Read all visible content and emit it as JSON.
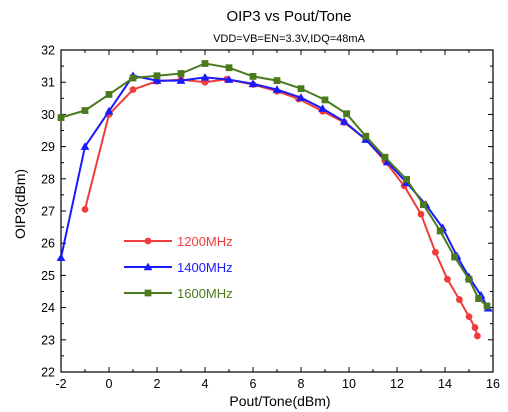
{
  "chart_data": {
    "type": "line",
    "title": "OIP3 vs Pout/Tone",
    "subtitle": "VDD=VB=EN=3.3V,IDQ=48mA",
    "xlabel": "Pout/Tone(dBm)",
    "ylabel": "OIP3(dBm)",
    "xlim": [
      -2,
      16
    ],
    "ylim": [
      22,
      32
    ],
    "xticks": [
      -2,
      0,
      2,
      4,
      6,
      8,
      10,
      12,
      14,
      16
    ],
    "yticks": [
      22,
      23,
      24,
      25,
      26,
      27,
      28,
      29,
      30,
      31,
      32
    ],
    "grid": false,
    "legend_position": "center-left",
    "series": [
      {
        "name": "1200MHz",
        "color": "#f03c3c",
        "marker": "circle",
        "x": [
          -1.0,
          0.0,
          1.0,
          2.0,
          3.0,
          4.0,
          4.9,
          6.0,
          7.0,
          7.9,
          8.9,
          9.8,
          10.7,
          11.5,
          12.3,
          13.0,
          13.6,
          14.1,
          14.6,
          15.0,
          15.25,
          15.35
        ],
        "y": [
          27.05,
          30.0,
          30.77,
          31.03,
          31.08,
          31.0,
          31.09,
          30.93,
          30.72,
          30.48,
          30.1,
          29.75,
          29.22,
          28.55,
          27.78,
          26.9,
          25.72,
          24.88,
          24.25,
          23.72,
          23.38,
          23.12
        ]
      },
      {
        "name": "1400MHz",
        "color": "#1a1aff",
        "marker": "triangle",
        "x": [
          -2.0,
          -1.0,
          0.0,
          1.0,
          2.0,
          3.0,
          4.0,
          5.0,
          6.0,
          7.0,
          8.0,
          8.9,
          9.8,
          10.7,
          11.6,
          12.4,
          13.2,
          13.9,
          14.5,
          15.0,
          15.5,
          15.8
        ],
        "y": [
          25.55,
          29.0,
          30.1,
          31.2,
          31.05,
          31.05,
          31.15,
          31.08,
          30.95,
          30.77,
          30.52,
          30.18,
          29.78,
          29.22,
          28.52,
          27.88,
          27.2,
          26.48,
          25.6,
          24.95,
          24.38,
          23.98
        ]
      },
      {
        "name": "1600MHz",
        "color": "#4a7a1c",
        "marker": "square",
        "x": [
          -2.0,
          -1.0,
          0.0,
          1.0,
          2.0,
          3.0,
          4.0,
          5.0,
          6.0,
          7.0,
          8.0,
          9.0,
          9.9,
          10.7,
          11.5,
          12.4,
          13.1,
          13.8,
          14.4,
          15.0,
          15.4,
          15.75
        ],
        "y": [
          29.9,
          30.12,
          30.62,
          31.13,
          31.2,
          31.27,
          31.58,
          31.45,
          31.18,
          31.05,
          30.8,
          30.45,
          30.02,
          29.32,
          28.67,
          27.98,
          27.2,
          26.38,
          25.57,
          24.88,
          24.28,
          24.05
        ]
      }
    ]
  }
}
